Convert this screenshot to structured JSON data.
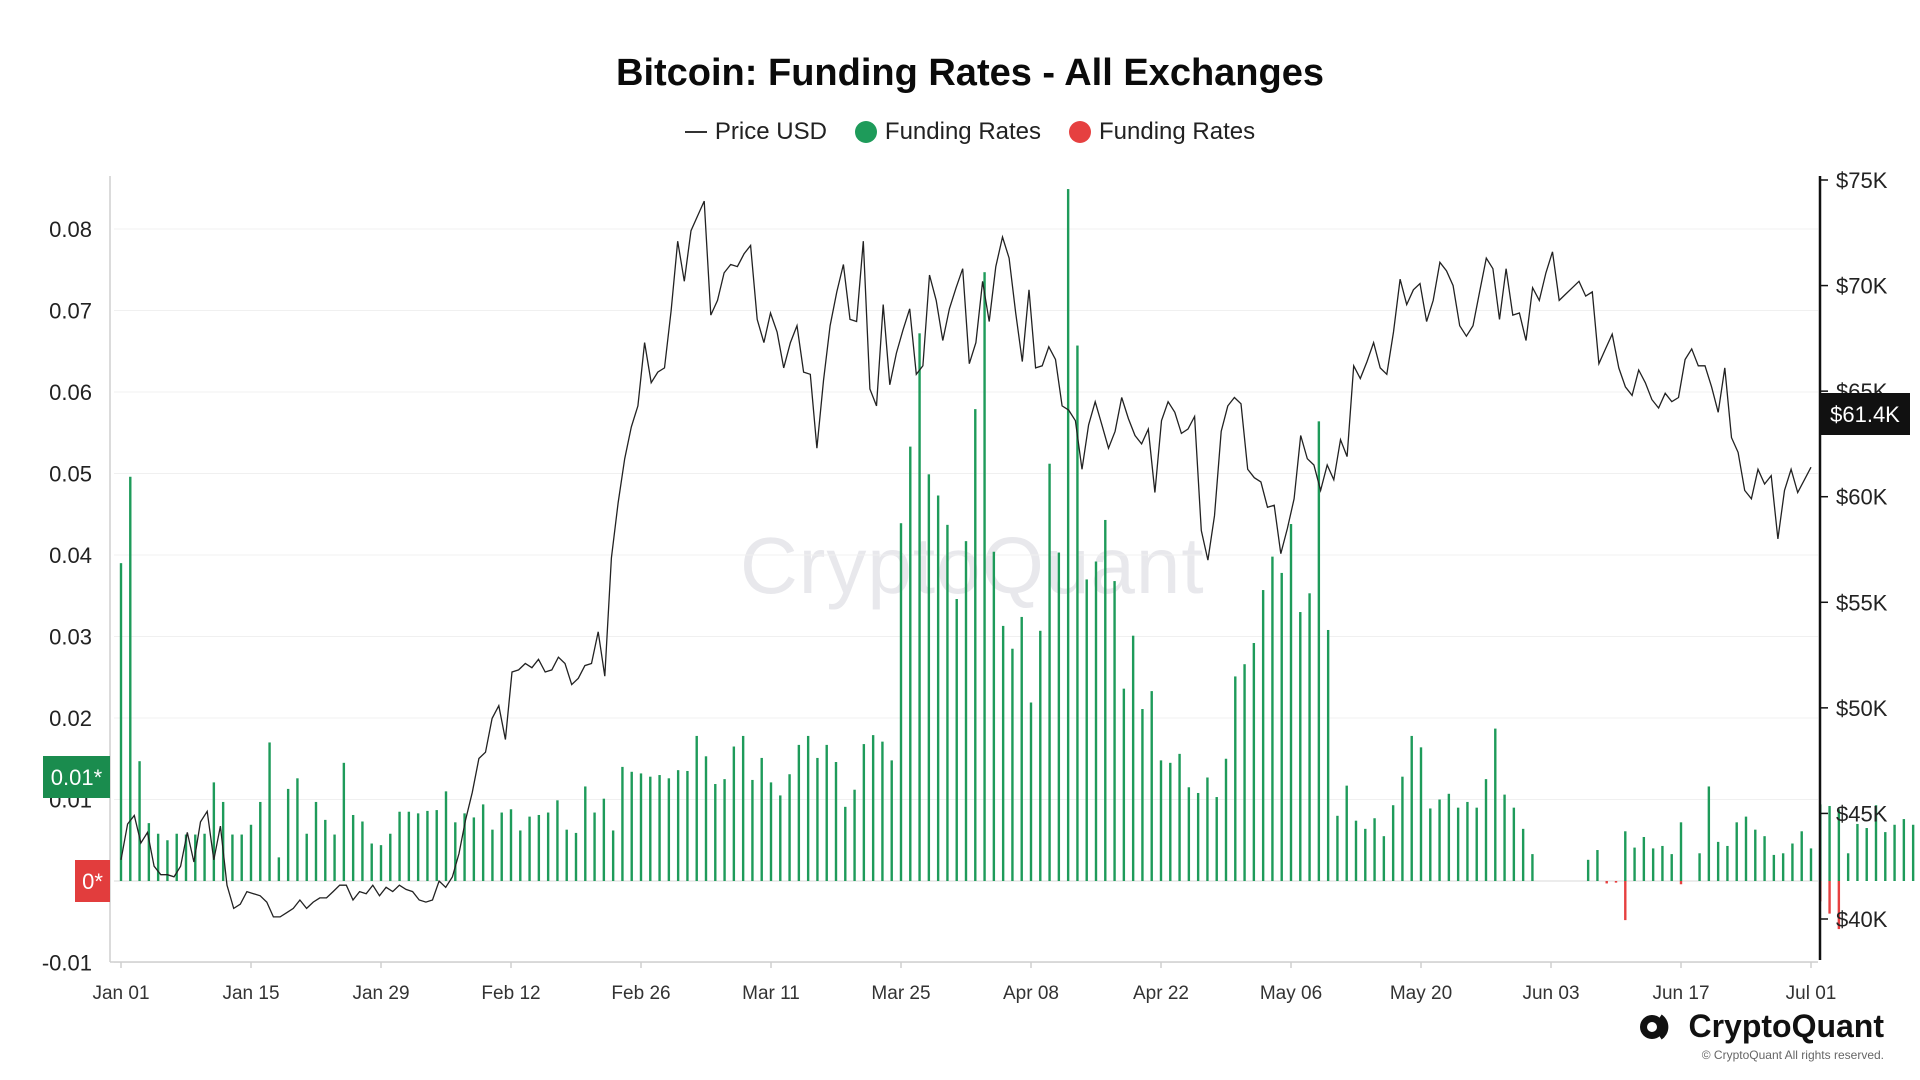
{
  "chart_data": {
    "type": "bar",
    "title": "Bitcoin: Funding Rates - All Exchanges",
    "legend": [
      "Price USD",
      "Funding Rates",
      "Funding Rates"
    ],
    "legend_placement": "top-center",
    "grid": true,
    "x_ticks": [
      "Jan 01",
      "Jan 15",
      "Jan 29",
      "Feb 12",
      "Feb 26",
      "Mar 11",
      "Mar 25",
      "Apr 08",
      "Apr 22",
      "May 06",
      "May 20",
      "Jun 03",
      "Jun 17",
      "Jul 01"
    ],
    "y_left_ticks": [
      "0.08",
      "0.07",
      "0.06",
      "0.05",
      "0.04",
      "0.03",
      "0.02",
      "0.01",
      "-0.01"
    ],
    "y_left_lim": [
      -0.01,
      0.085
    ],
    "y_right_ticks": [
      "$75K",
      "$70K",
      "$65K",
      "$60K",
      "$55K",
      "$50K",
      "$45K",
      "$40K"
    ],
    "y_right_lim": [
      39000,
      75000
    ],
    "marker_labels": {
      "funding_current": "0.01*",
      "zero": "0*",
      "price_current": "$61.4K"
    },
    "colors": {
      "positive": "#1e9b5a",
      "negative": "#e64040",
      "price": "#222222",
      "marker_green": "#1a8c4e",
      "marker_red": "#e23d3d",
      "marker_black": "#111111"
    },
    "series": [
      {
        "name": "Price USD",
        "type": "line",
        "values": [
          42800,
          44500,
          44900,
          43600,
          44100,
          42500,
          42100,
          42100,
          42000,
          42500,
          44100,
          42700,
          44600,
          45100,
          42800,
          44400,
          41600,
          40500,
          40700,
          41300,
          41200,
          41100,
          40800,
          40100,
          40100,
          40300,
          40500,
          40900,
          40500,
          40800,
          41000,
          41000,
          41300,
          41600,
          41600,
          40900,
          41300,
          41200,
          41600,
          41100,
          41500,
          41300,
          41600,
          41400,
          41300,
          40900,
          40800,
          40900,
          41800,
          41500,
          42000,
          43100,
          44700,
          46000,
          47600,
          47900,
          49500,
          50100,
          48500,
          51700,
          51800,
          52100,
          51900,
          52300,
          51700,
          51800,
          52400,
          52100,
          51100,
          51400,
          52000,
          52100,
          53600,
          51500,
          57100,
          59700,
          61800,
          63300,
          64300,
          67300,
          65400,
          65900,
          66100,
          68800,
          72100,
          70200,
          72600,
          73300,
          74000,
          68600,
          69300,
          70600,
          71000,
          70900,
          71500,
          71900,
          68400,
          67300,
          68700,
          67800,
          66100,
          67300,
          68100,
          65900,
          65800,
          62300,
          65500,
          68100,
          69700,
          71000,
          68400,
          68300,
          72100,
          65100,
          64300,
          69100,
          65300,
          66800,
          67900,
          68900,
          65800,
          66200,
          70500,
          69300,
          67400,
          68900,
          69900,
          70800,
          66300,
          67300,
          70200,
          68300,
          70900,
          72300,
          71300,
          68700,
          66400,
          69800,
          66100,
          66200,
          67100,
          66500,
          64300,
          64100,
          63600,
          61300,
          63400,
          64500,
          63400,
          62300,
          63100,
          64700,
          63700,
          62900,
          62500,
          63200,
          60200,
          63600,
          64500,
          64000,
          63000,
          63200,
          63800,
          58400,
          57000,
          59100,
          63100,
          64300,
          64700,
          64400,
          61300,
          60900,
          60700,
          59500,
          59600,
          57300,
          58500,
          59900,
          62900,
          61800,
          61500,
          60300,
          61500,
          60800,
          62700,
          61900,
          66200,
          65600,
          66400,
          67300,
          66100,
          65800,
          67800,
          70300,
          69100,
          69800,
          70100,
          68300,
          69300,
          71100,
          70700,
          70000,
          68100,
          67600,
          68100,
          69700,
          71300,
          70800,
          68400,
          70800,
          68600,
          68700,
          67400,
          69900,
          69300,
          70600,
          71600,
          69300,
          69600,
          69900,
          70200,
          69500,
          69700,
          66300,
          67000,
          67700,
          66100,
          65200,
          64800,
          66000,
          65400,
          64600,
          64200,
          64900,
          64500,
          64700,
          66500,
          67000,
          66200,
          66200,
          65200,
          64000,
          66100,
          62800,
          62100,
          60300,
          59900,
          61300,
          60600,
          61000,
          58000,
          60300,
          61300,
          60200,
          60800,
          61400
        ]
      },
      {
        "name": "Funding Rates",
        "type": "bar",
        "color": "positive",
        "values": [
          0.039,
          0.0496,
          0.0147,
          0.0071,
          0.0058,
          0.005,
          0.0058,
          0.0057,
          0.0057,
          0.0058,
          0.0121,
          0.0097,
          0.0057,
          0.0057,
          0.0069,
          0.0097,
          0.017,
          0.0029,
          0.0113,
          0.0126,
          0.0058,
          0.0097,
          0.0075,
          0.0057,
          0.0145,
          0.0081,
          0.0073,
          0.0046,
          0.0044,
          0.0058,
          0.0085,
          0.0085,
          0.0083,
          0.0086,
          0.0087,
          0.011,
          0.0072,
          0.0083,
          0.0078,
          0.0094,
          0.0063,
          0.0084,
          0.0088,
          0.0062,
          0.0079,
          0.0081,
          0.0084,
          0.0099,
          0.0063,
          0.0059,
          0.0116,
          0.0084,
          0.0101,
          0.0062,
          0.014,
          0.0134,
          0.0132,
          0.0128,
          0.013,
          0.0126,
          0.0136,
          0.0135,
          0.0178,
          0.0153,
          0.0119,
          0.0125,
          0.0165,
          0.0178,
          0.0124,
          0.0151,
          0.0121,
          0.0105,
          0.0131,
          0.0167,
          0.0178,
          0.0151,
          0.0167,
          0.0146,
          0.0091,
          0.0112,
          0.0168,
          0.0179,
          0.0171,
          0.0148,
          0.0439,
          0.0533,
          0.0672,
          0.0499,
          0.0473,
          0.0437,
          0.0346,
          0.0417,
          0.0579,
          0.0747,
          0.0404,
          0.0313,
          0.0285,
          0.0324,
          0.0219,
          0.0307,
          0.0512,
          0.0403,
          0.0849,
          0.0657,
          0.037,
          0.0392,
          0.0443,
          0.0368,
          0.0236,
          0.0301,
          0.0211,
          0.0233,
          0.0148,
          0.0145,
          0.0156,
          0.0115,
          0.0108,
          0.0127,
          0.0103,
          0.015,
          0.0251,
          0.0266,
          0.0292,
          0.0357,
          0.0398,
          0.0378,
          0.0438,
          0.033,
          0.0353,
          0.0564,
          0.0308,
          0.008,
          0.0117,
          0.0074,
          0.0064,
          0.0077,
          0.0055,
          0.0093,
          0.0128,
          0.0178,
          0.0164,
          0.0089,
          0.01,
          0.0107,
          0.009,
          0.0097,
          0.009,
          0.0125,
          0.0187,
          0.0106,
          0.009,
          0.0064,
          0.0033,
          0,
          0,
          0,
          0,
          0,
          0.0026,
          0.0038,
          0,
          0,
          0.0061,
          0.0041,
          0.0054,
          0.004,
          0.0043,
          0.0033,
          0.0072,
          0,
          0.0034,
          0.0116,
          0.0048,
          0.0043,
          0.0072,
          0.0079,
          0.0063,
          0.0055,
          0.0032,
          0.0034,
          0.0046,
          0.0061,
          0.004,
          0.0094,
          0.0092,
          0.0088,
          0.0034,
          0.007,
          0.0065,
          0.0093,
          0.006,
          0.0069,
          0.0076,
          0.0069,
          0.0118,
          0.013,
          0.0111,
          0.0189,
          0.01,
          0.0108,
          0.0087,
          0.0122,
          0.0149,
          0.0093,
          0.0211,
          0.0134,
          0.0147,
          0.0156,
          0.0062,
          0.0209,
          0.0169,
          0.0146,
          0.0119,
          0.0106,
          0.011,
          0.009,
          0.0109,
          0.0194,
          0.0101,
          0.0118,
          0.0102,
          0.0076,
          0.0078,
          0.0081,
          0.0075,
          0.014,
          0.0201,
          0.0209,
          0.0136,
          0.0083,
          0.0083,
          0.0085,
          0.0076,
          0.0095,
          0.01,
          0.0083,
          0.0067,
          0.0052,
          0.0055,
          0.0054,
          0.0063,
          0.0081,
          0.0056,
          0.009,
          0.0063,
          0.0038,
          0.0051,
          0.0078,
          0.0054,
          0.0053,
          0.0081,
          0.0038,
          0.0031,
          0.0041,
          0.0068,
          0.0136,
          0.0134,
          0.0096,
          0.0127,
          0.0074,
          0.0092,
          0.0066
        ]
      },
      {
        "name": "Funding Rates",
        "type": "bar",
        "color": "negative",
        "points": [
          [
            160,
            -0.0003
          ],
          [
            161,
            -0.0002
          ],
          [
            162,
            -0.0048
          ],
          [
            168,
            -0.0004
          ],
          [
            183,
            -0.0025
          ],
          [
            184,
            -0.004
          ],
          [
            185,
            -0.0059
          ]
        ]
      }
    ]
  }
}
